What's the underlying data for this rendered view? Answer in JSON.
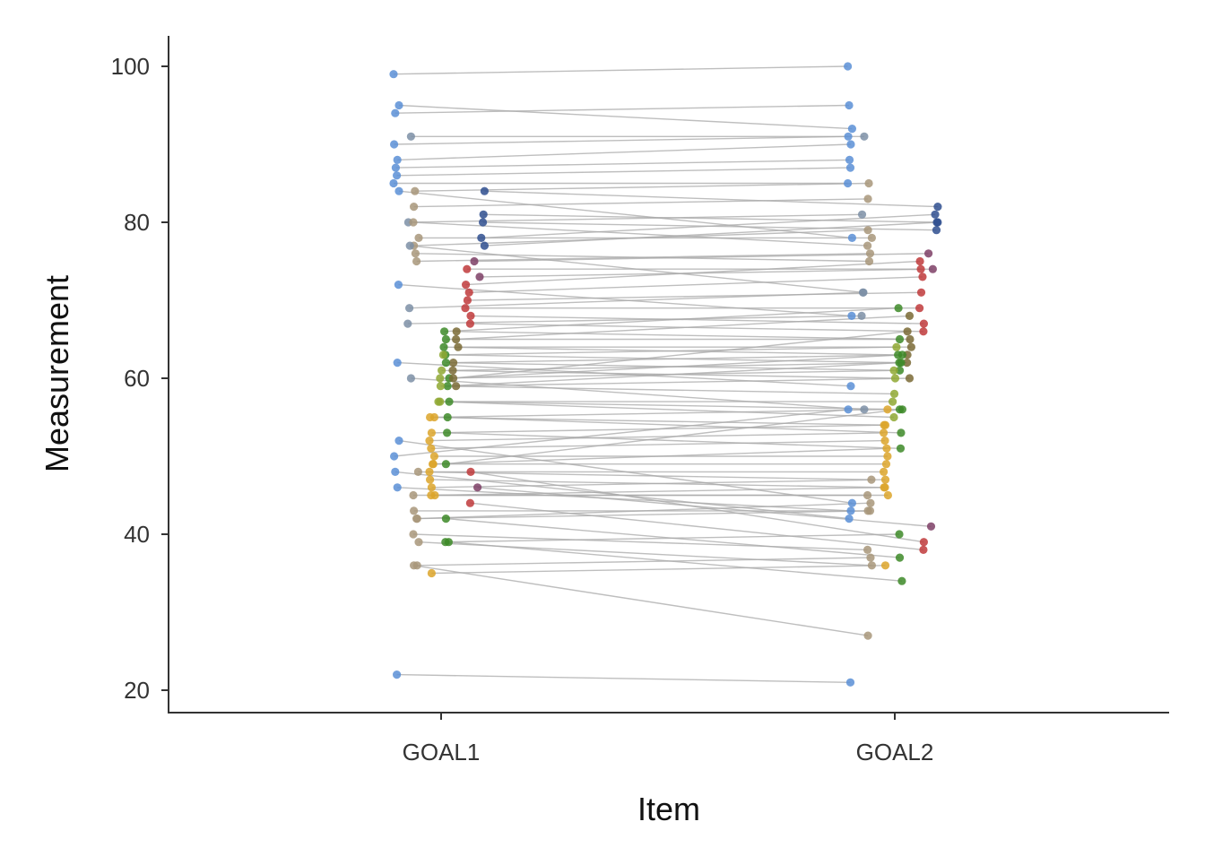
{
  "chart_data": {
    "type": "scatter",
    "subtype": "paired-dot-plot",
    "title": "",
    "xlabel": "Item",
    "ylabel": "Measurement",
    "categories": [
      "GOAL1",
      "GOAL2"
    ],
    "y_ticks": [
      20,
      40,
      60,
      80,
      100
    ],
    "ylim": [
      17,
      104
    ],
    "grid": false,
    "legend": "none",
    "line_color": "#a8a8a8",
    "pairs": [
      {
        "g": "a",
        "v": [
          99,
          100
        ]
      },
      {
        "g": "a",
        "v": [
          95,
          92
        ]
      },
      {
        "g": "a",
        "v": [
          94,
          95
        ]
      },
      {
        "g": "b",
        "v": [
          91,
          91
        ]
      },
      {
        "g": "a",
        "v": [
          90,
          91
        ]
      },
      {
        "g": "a",
        "v": [
          88,
          90
        ]
      },
      {
        "g": "a",
        "v": [
          87,
          88
        ]
      },
      {
        "g": "a",
        "v": [
          86,
          87
        ]
      },
      {
        "g": "a",
        "v": [
          85,
          85
        ]
      },
      {
        "g": "a",
        "v": [
          84,
          78
        ]
      },
      {
        "g": "c",
        "v": [
          84,
          85
        ]
      },
      {
        "g": "k",
        "v": [
          84,
          82
        ]
      },
      {
        "g": "c",
        "v": [
          82,
          83
        ]
      },
      {
        "g": "k",
        "v": [
          81,
          80
        ]
      },
      {
        "g": "b",
        "v": [
          80,
          81
        ]
      },
      {
        "g": "k",
        "v": [
          80,
          79
        ]
      },
      {
        "g": "c",
        "v": [
          80,
          77
        ]
      },
      {
        "g": "c",
        "v": [
          78,
          78
        ]
      },
      {
        "g": "k",
        "v": [
          78,
          81
        ]
      },
      {
        "g": "k",
        "v": [
          77,
          80
        ]
      },
      {
        "g": "c",
        "v": [
          77,
          79
        ]
      },
      {
        "g": "b",
        "v": [
          77,
          71
        ]
      },
      {
        "g": "c",
        "v": [
          76,
          75
        ]
      },
      {
        "g": "c",
        "v": [
          75,
          76
        ]
      },
      {
        "g": "j",
        "v": [
          75,
          76
        ]
      },
      {
        "g": "j",
        "v": [
          73,
          74
        ]
      },
      {
        "g": "i",
        "v": [
          74,
          74
        ]
      },
      {
        "g": "a",
        "v": [
          72,
          68
        ]
      },
      {
        "g": "i",
        "v": [
          72,
          75
        ]
      },
      {
        "g": "i",
        "v": [
          71,
          73
        ]
      },
      {
        "g": "i",
        "v": [
          70,
          71
        ]
      },
      {
        "g": "b",
        "v": [
          69,
          71
        ]
      },
      {
        "g": "i",
        "v": [
          69,
          69
        ]
      },
      {
        "g": "i",
        "v": [
          68,
          67
        ]
      },
      {
        "g": "b",
        "v": [
          67,
          68
        ]
      },
      {
        "g": "i",
        "v": [
          67,
          66
        ]
      },
      {
        "g": "f",
        "v": [
          66,
          69
        ]
      },
      {
        "g": "h",
        "v": [
          66,
          65
        ]
      },
      {
        "g": "f",
        "v": [
          65,
          65
        ]
      },
      {
        "g": "h",
        "v": [
          65,
          68
        ]
      },
      {
        "g": "f",
        "v": [
          64,
          63
        ]
      },
      {
        "g": "h",
        "v": [
          64,
          64
        ]
      },
      {
        "g": "f",
        "v": [
          63,
          62
        ]
      },
      {
        "g": "e",
        "v": [
          63,
          64
        ]
      },
      {
        "g": "h",
        "v": [
          62,
          63
        ]
      },
      {
        "g": "a",
        "v": [
          62,
          59
        ]
      },
      {
        "g": "f",
        "v": [
          62,
          61
        ]
      },
      {
        "g": "e",
        "v": [
          61,
          60
        ]
      },
      {
        "g": "h",
        "v": [
          61,
          62
        ]
      },
      {
        "g": "f",
        "v": [
          60,
          63
        ]
      },
      {
        "g": "e",
        "v": [
          60,
          61
        ]
      },
      {
        "g": "b",
        "v": [
          60,
          56
        ]
      },
      {
        "g": "h",
        "v": [
          60,
          66
        ]
      },
      {
        "g": "f",
        "v": [
          59,
          62
        ]
      },
      {
        "g": "e",
        "v": [
          59,
          58
        ]
      },
      {
        "g": "h",
        "v": [
          59,
          60
        ]
      },
      {
        "g": "e",
        "v": [
          57,
          57
        ]
      },
      {
        "g": "f",
        "v": [
          57,
          56
        ]
      },
      {
        "g": "e",
        "v": [
          57,
          55
        ]
      },
      {
        "g": "d",
        "v": [
          55,
          56
        ]
      },
      {
        "g": "d",
        "v": [
          55,
          54
        ]
      },
      {
        "g": "f",
        "v": [
          55,
          53
        ]
      },
      {
        "g": "d",
        "v": [
          53,
          54
        ]
      },
      {
        "g": "f",
        "v": [
          53,
          51
        ]
      },
      {
        "g": "d",
        "v": [
          52,
          53
        ]
      },
      {
        "g": "a",
        "v": [
          52,
          44
        ]
      },
      {
        "g": "d",
        "v": [
          51,
          52
        ]
      },
      {
        "g": "d",
        "v": [
          50,
          50
        ]
      },
      {
        "g": "a",
        "v": [
          50,
          56
        ]
      },
      {
        "g": "d",
        "v": [
          49,
          51
        ]
      },
      {
        "g": "f",
        "v": [
          49,
          56
        ]
      },
      {
        "g": "d",
        "v": [
          49,
          49
        ]
      },
      {
        "g": "d",
        "v": [
          48,
          48
        ]
      },
      {
        "g": "i",
        "v": [
          48,
          39
        ]
      },
      {
        "g": "a",
        "v": [
          48,
          42
        ]
      },
      {
        "g": "c",
        "v": [
          48,
          47
        ]
      },
      {
        "g": "d",
        "v": [
          47,
          46
        ]
      },
      {
        "g": "a",
        "v": [
          46,
          43
        ]
      },
      {
        "g": "d",
        "v": [
          46,
          47
        ]
      },
      {
        "g": "j",
        "v": [
          46,
          41
        ]
      },
      {
        "g": "c",
        "v": [
          45,
          45
        ]
      },
      {
        "g": "d",
        "v": [
          45,
          45
        ]
      },
      {
        "g": "d",
        "v": [
          45,
          46
        ]
      },
      {
        "g": "i",
        "v": [
          44,
          38
        ]
      },
      {
        "g": "c",
        "v": [
          43,
          43
        ]
      },
      {
        "g": "c",
        "v": [
          42,
          44
        ]
      },
      {
        "g": "f",
        "v": [
          42,
          37
        ]
      },
      {
        "g": "c",
        "v": [
          42,
          43
        ]
      },
      {
        "g": "c",
        "v": [
          40,
          38
        ]
      },
      {
        "g": "c",
        "v": [
          39,
          36
        ]
      },
      {
        "g": "f",
        "v": [
          39,
          40
        ]
      },
      {
        "g": "f",
        "v": [
          39,
          34
        ]
      },
      {
        "g": "c",
        "v": [
          36,
          27
        ]
      },
      {
        "g": "c",
        "v": [
          36,
          37
        ]
      },
      {
        "g": "d",
        "v": [
          35,
          36
        ]
      },
      {
        "g": "a",
        "v": [
          22,
          21
        ]
      }
    ],
    "colors": {
      "a": "#5b8fd6",
      "b": "#7d8fa6",
      "c": "#a8977a",
      "d": "#dca52a",
      "e": "#8fa832",
      "f": "#3d8a28",
      "h": "#7a6a35",
      "i": "#c0393b",
      "j": "#7e3f66",
      "k": "#2f4f8f"
    }
  }
}
